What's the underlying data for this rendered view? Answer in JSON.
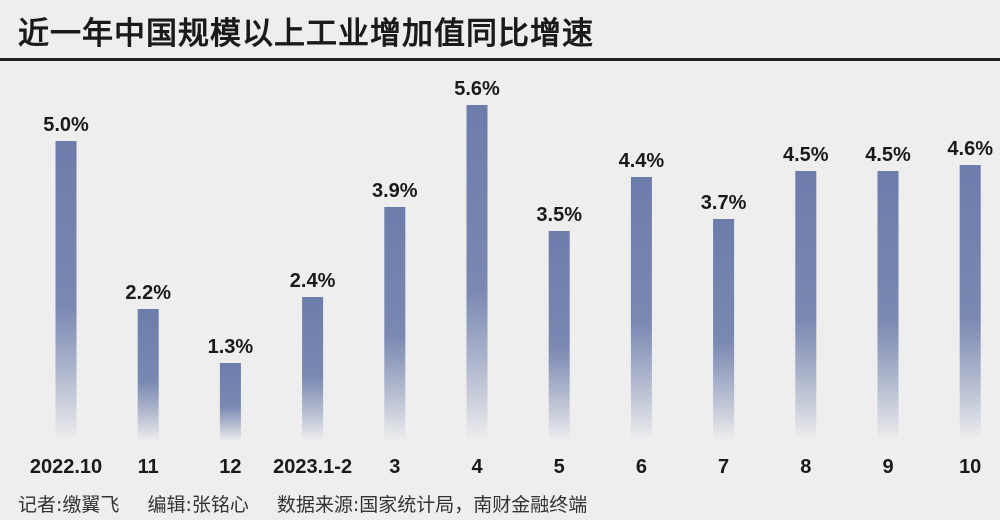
{
  "title": "近一年中国规模以上工业增加值同比增速",
  "footer": {
    "reporter": "记者:缴翼飞",
    "editor": "编辑:张铭心",
    "source": "数据来源:国家统计局，南财金融终端"
  },
  "colors": {
    "bar_top": "#6d7dab",
    "bar_bottom": "#eeeeee",
    "background": "#eeeeee",
    "text": "#1a1a1a"
  },
  "chart_data": {
    "type": "bar",
    "title": "近一年中国规模以上工业增加值同比增速",
    "categories": [
      "2022.10",
      "11",
      "12",
      "2023.1-2",
      "3",
      "4",
      "5",
      "6",
      "7",
      "8",
      "9",
      "10"
    ],
    "values": [
      5.0,
      2.2,
      1.3,
      2.4,
      3.9,
      5.6,
      3.5,
      4.4,
      3.7,
      4.5,
      4.5,
      4.6
    ],
    "value_labels": [
      "5.0%",
      "2.2%",
      "1.3%",
      "2.4%",
      "3.9%",
      "5.6%",
      "3.5%",
      "4.4%",
      "3.7%",
      "4.5%",
      "4.5%",
      "4.6%"
    ],
    "xlabel": "",
    "ylabel": "",
    "ylim": [
      0,
      6
    ],
    "grid": false,
    "legend": "none"
  }
}
